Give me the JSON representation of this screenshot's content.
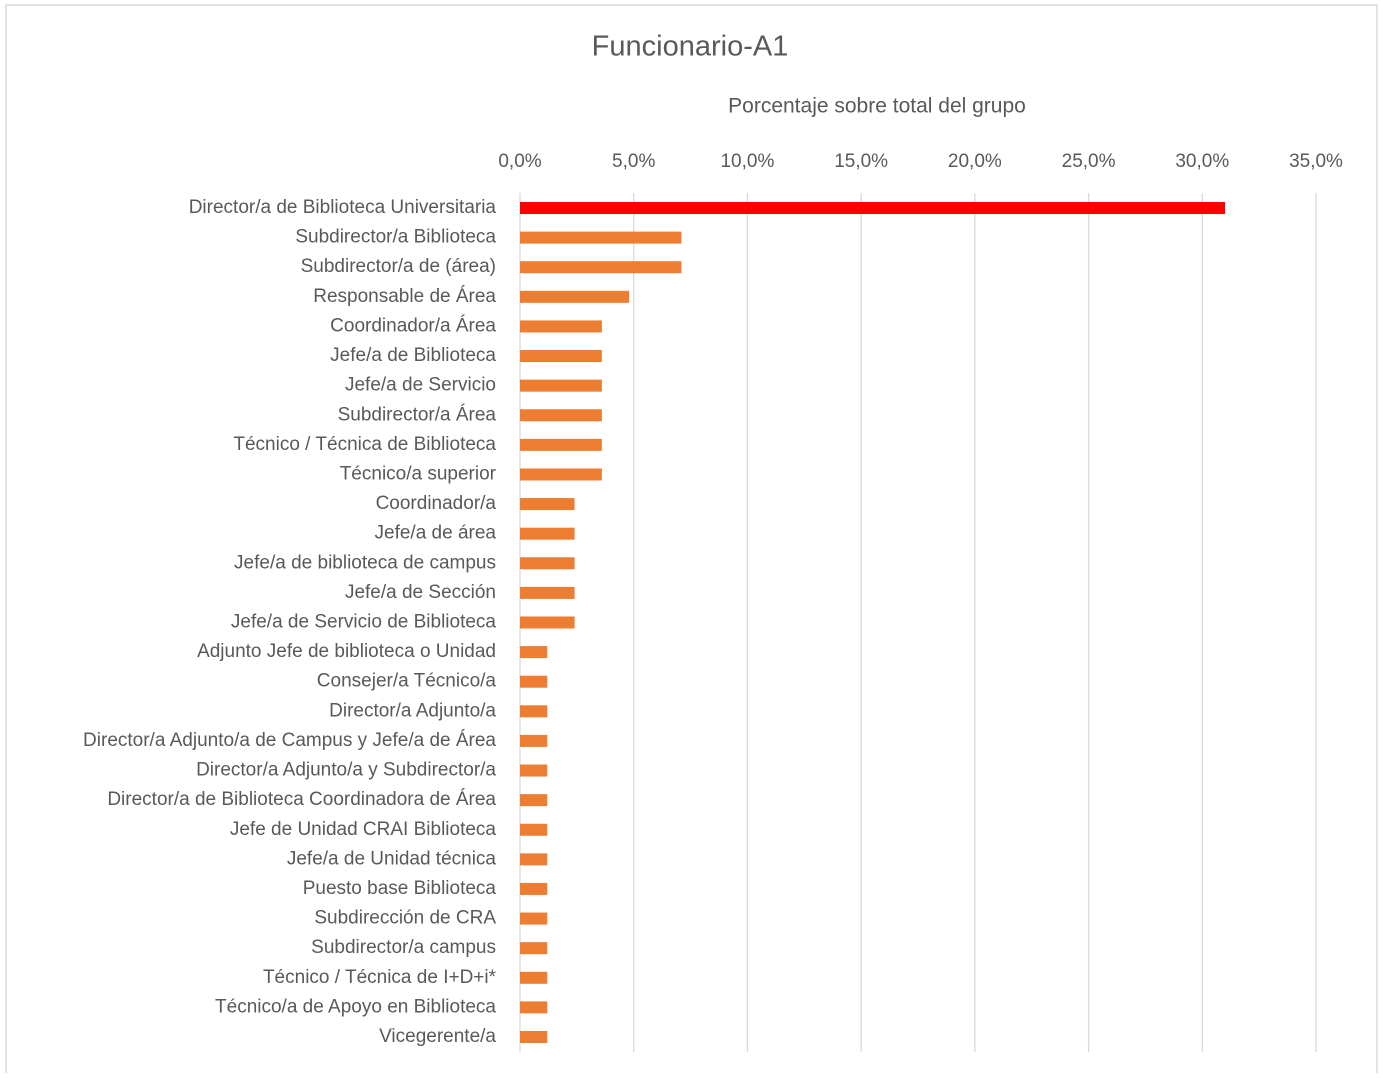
{
  "chart_data": {
    "type": "bar",
    "orientation": "horizontal",
    "title": "Funcionario-A1",
    "x_label": "Porcentaje sobre total del grupo",
    "categories": [
      "Director/a de Biblioteca Universitaria",
      "Subdirector/a Biblioteca",
      "Subdirector/a de (área)",
      "Responsable de Área",
      "Coordinador/a Área",
      "Jefe/a de Biblioteca",
      "Jefe/a de Servicio",
      "Subdirector/a Área",
      "Técnico / Técnica de Biblioteca",
      "Técnico/a superior",
      "Coordinador/a",
      "Jefe/a de área",
      "Jefe/a de biblioteca de campus",
      "Jefe/a de Sección",
      "Jefe/a de Servicio de Biblioteca",
      "Adjunto Jefe de biblioteca o Unidad",
      "Consejer/a Técnico/a",
      "Director/a Adjunto/a",
      "Director/a Adjunto/a de Campus y Jefe/a de Área",
      "Director/a Adjunto/a y Subdirector/a",
      "Director/a de Biblioteca Coordinadora de Área",
      "Jefe de Unidad CRAI Biblioteca",
      "Jefe/a de Unidad técnica",
      "Puesto base Biblioteca",
      "Subdirección de CRA",
      "Subdirector/a campus",
      "Técnico / Técnica de I+D+i*",
      "Técnico/a de Apoyo en Biblioteca",
      "Vicegerente/a"
    ],
    "values": [
      31.0,
      7.1,
      7.1,
      4.8,
      3.6,
      3.6,
      3.6,
      3.6,
      3.6,
      3.6,
      2.4,
      2.4,
      2.4,
      2.4,
      2.4,
      1.2,
      1.2,
      1.2,
      1.2,
      1.2,
      1.2,
      1.2,
      1.2,
      1.2,
      1.2,
      1.2,
      1.2,
      1.2,
      1.2
    ],
    "color": "#ed7d31",
    "highlight": {
      "index": 0,
      "color": "#ff0000"
    },
    "xlim": [
      0,
      35
    ],
    "xticks": [
      {
        "value": 0,
        "label": "0,0%"
      },
      {
        "value": 5,
        "label": "5,0%"
      },
      {
        "value": 10,
        "label": "10,0%"
      },
      {
        "value": 15,
        "label": "15,0%"
      },
      {
        "value": 20,
        "label": "20,0%"
      },
      {
        "value": 25,
        "label": "25,0%"
      },
      {
        "value": 30,
        "label": "30,0%"
      },
      {
        "value": 35,
        "label": "35,0%"
      }
    ],
    "x_axis_position": "top",
    "grid": true
  }
}
